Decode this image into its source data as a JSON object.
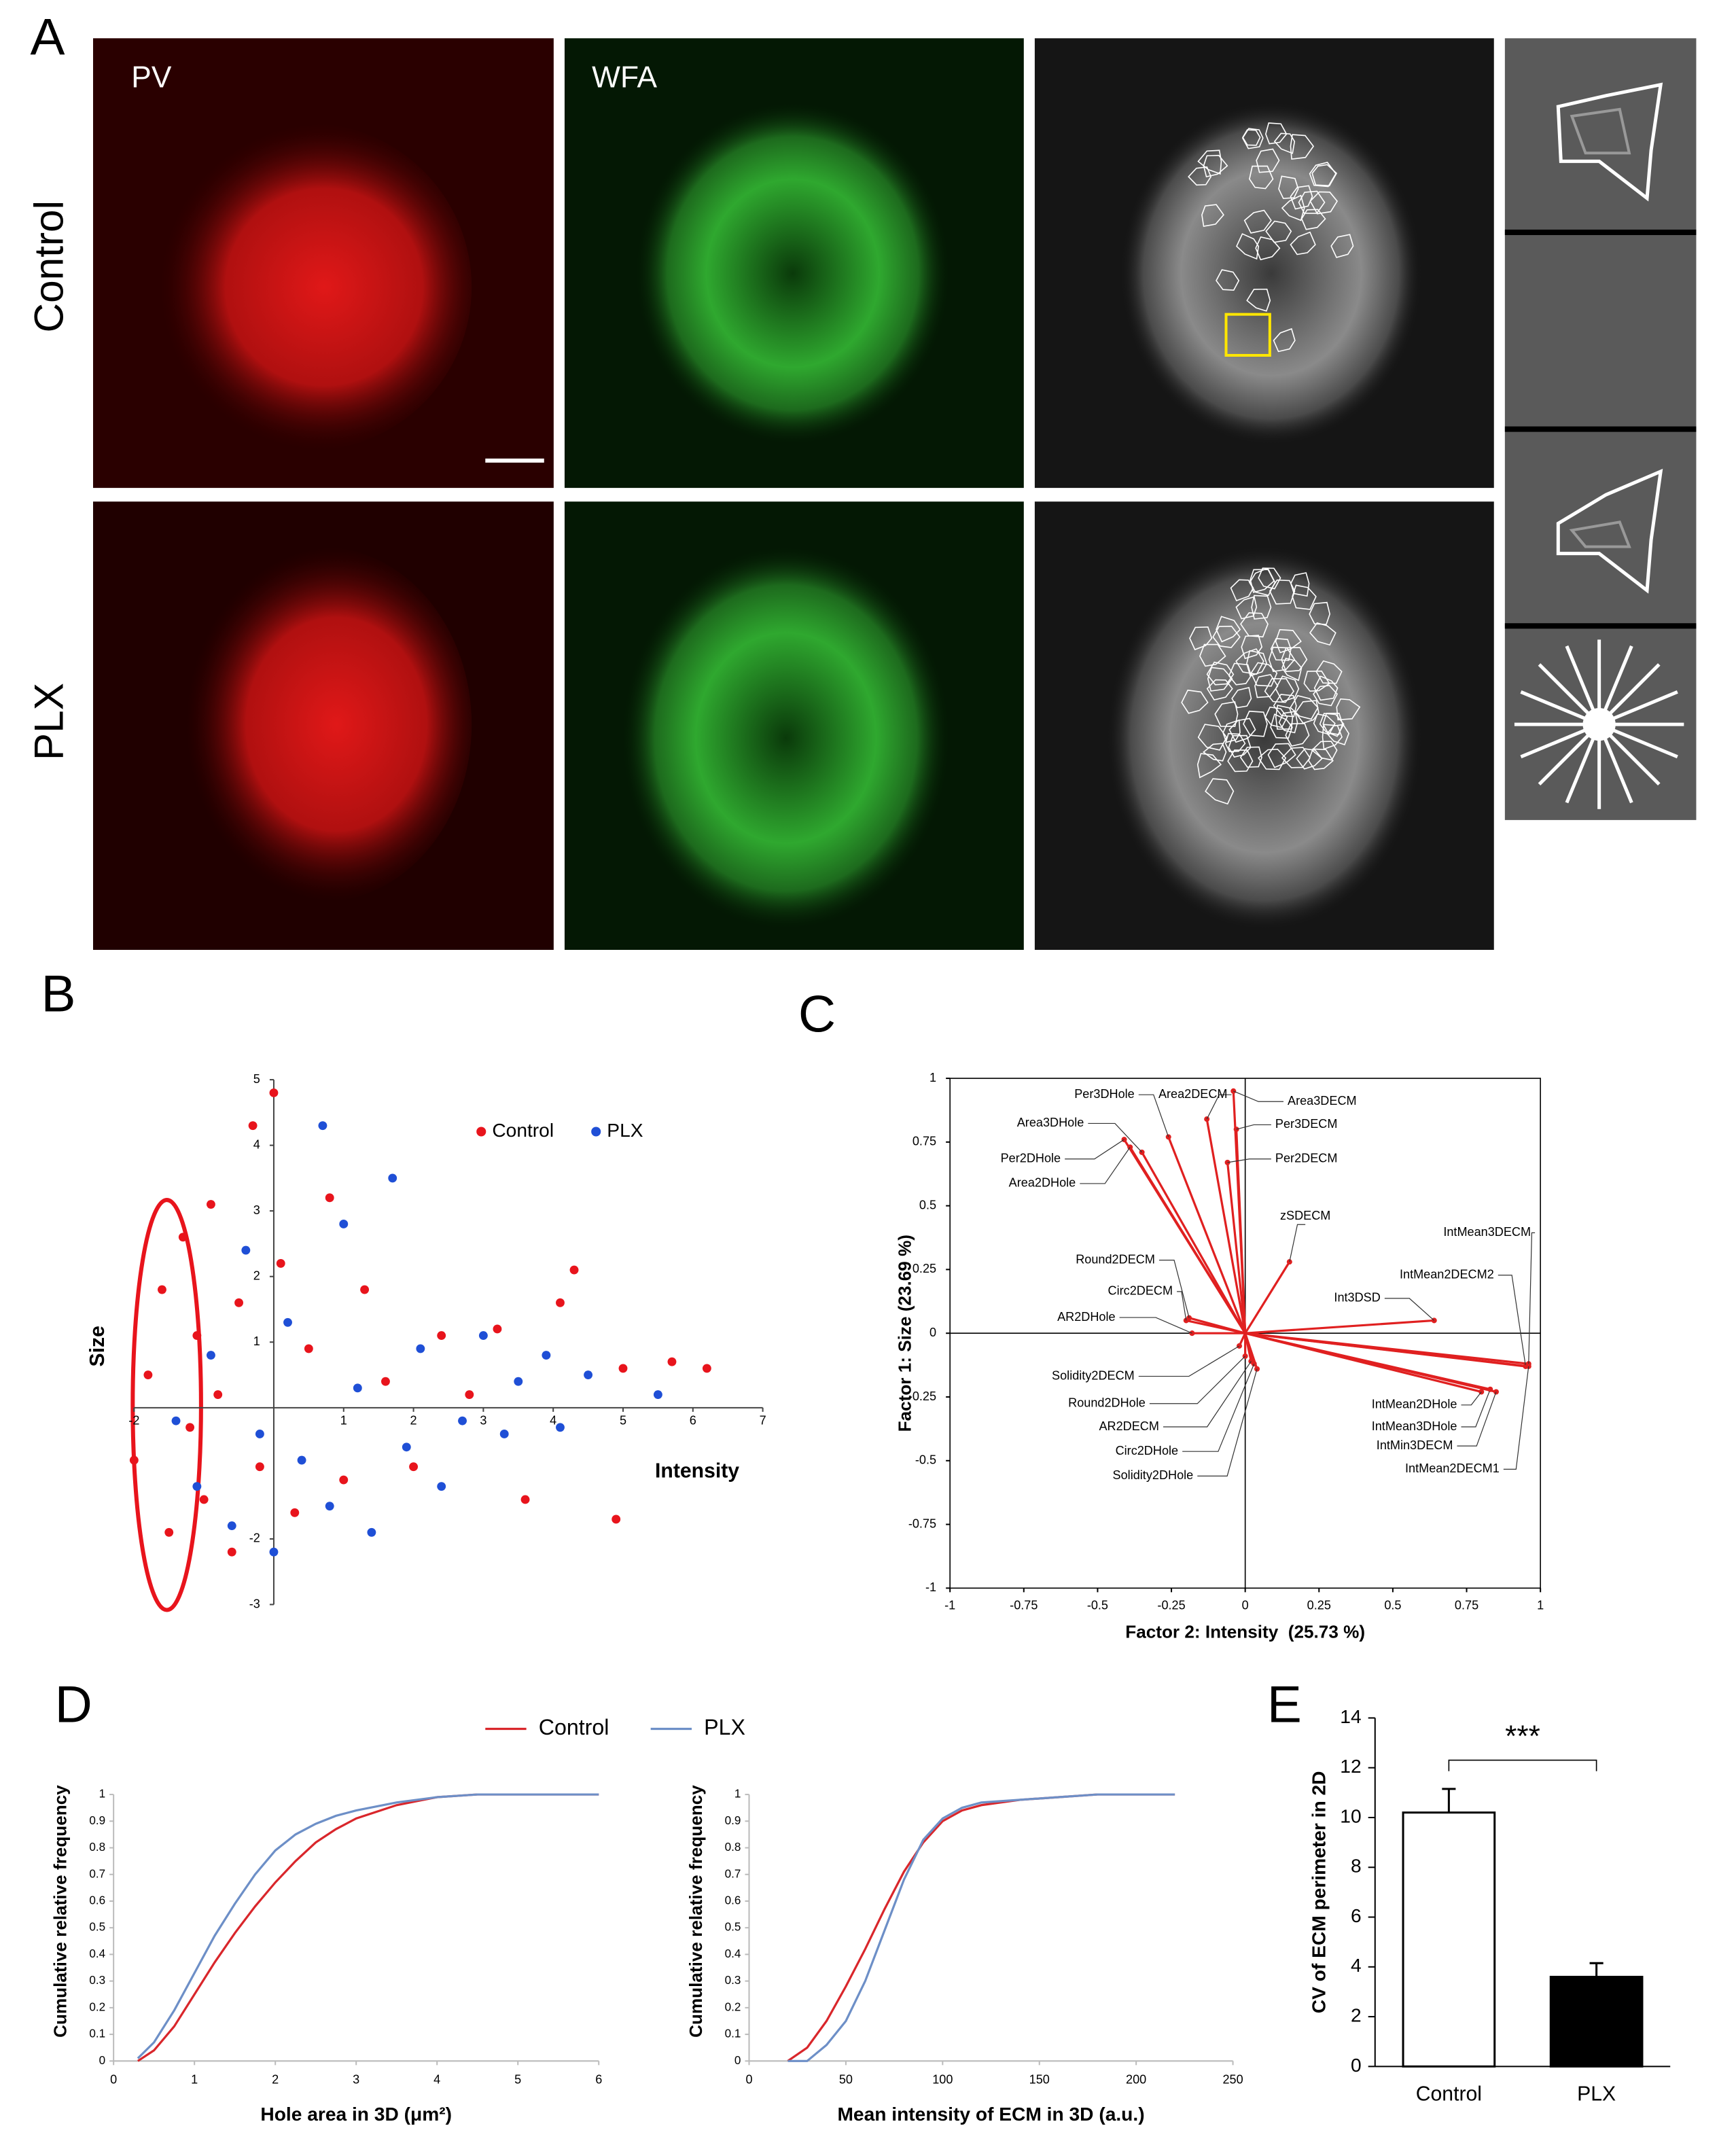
{
  "panel_a": {
    "label": "A",
    "columns": [
      "PV",
      "WFA"
    ],
    "rows": [
      "Control",
      "PLX"
    ]
  },
  "chart_data": [
    {
      "type": "scatter",
      "panel": "B",
      "x_label": "Intensity",
      "y_label": "Size",
      "xlim": [
        -2,
        7
      ],
      "ylim": [
        -3,
        5
      ],
      "xticks": [
        -2,
        1,
        2,
        3,
        4,
        5,
        6,
        7
      ],
      "yticks": [
        -3,
        -2,
        1,
        2,
        3,
        4,
        5
      ],
      "legend": "top-right",
      "series": [
        {
          "name": "Control",
          "color": "#e8141c",
          "x": [
            -2,
            -1.8,
            -1.6,
            -1.5,
            -1.3,
            -1.2,
            -1.1,
            -1,
            -0.9,
            -0.8,
            -0.6,
            -0.5,
            -0.3,
            -0.2,
            0,
            0.1,
            0.3,
            0.5,
            0.8,
            1,
            1.3,
            1.6,
            2,
            2.4,
            2.8,
            3.2,
            3.6,
            4.1,
            4.3,
            4.9,
            5,
            5.7,
            6.2
          ],
          "y": [
            -0.8,
            0.5,
            1.8,
            -1.9,
            2.6,
            -0.3,
            1.1,
            -1.4,
            3.1,
            0.2,
            -2.2,
            1.6,
            4.3,
            -0.9,
            4.8,
            2.2,
            -1.6,
            0.9,
            3.2,
            -1.1,
            1.8,
            0.4,
            -0.9,
            1.1,
            0.2,
            1.2,
            -1.4,
            1.6,
            2.1,
            -1.7,
            0.6,
            0.7,
            0.6
          ]
        },
        {
          "name": "PLX",
          "color": "#1f4fd6",
          "x": [
            -1.4,
            -1.1,
            -0.9,
            -0.6,
            -0.4,
            -0.2,
            0,
            0.2,
            0.4,
            0.7,
            0.8,
            1,
            1.2,
            1.4,
            1.7,
            1.9,
            2.1,
            2.4,
            2.7,
            3,
            3.3,
            3.5,
            3.9,
            4.1,
            4.5,
            5.5
          ],
          "y": [
            -0.2,
            -1.2,
            0.8,
            -1.8,
            2.4,
            -0.4,
            -2.2,
            1.3,
            -0.8,
            4.3,
            -1.5,
            2.8,
            0.3,
            -1.9,
            3.5,
            -0.6,
            0.9,
            -1.2,
            -0.2,
            1.1,
            -0.4,
            0.4,
            0.8,
            -0.3,
            0.5,
            0.2
          ]
        }
      ]
    },
    {
      "type": "biplot",
      "panel": "C",
      "x_label": "Factor 2: Intensity  (25.73 %)",
      "y_label": "Factor 1: Size (23.69 %)",
      "xlim": [
        -1,
        1
      ],
      "ylim": [
        -1,
        1
      ],
      "xticks": [
        -1,
        -0.75,
        -0.5,
        -0.25,
        0,
        0.25,
        0.5,
        0.75,
        1
      ],
      "yticks": [
        -1,
        -0.75,
        -0.5,
        -0.25,
        0,
        0.25,
        0.5,
        0.75,
        1
      ],
      "color": "#e02020",
      "vectors": [
        {
          "label": "Per3DHole",
          "x": -0.26,
          "y": 0.77
        },
        {
          "label": "Area2DECM",
          "x": -0.13,
          "y": 0.84
        },
        {
          "label": "Area3DECM",
          "x": -0.04,
          "y": 0.95
        },
        {
          "label": "Area3DHole",
          "x": -0.35,
          "y": 0.71
        },
        {
          "label": "Per3DECM",
          "x": -0.03,
          "y": 0.8
        },
        {
          "label": "Per2DHole",
          "x": -0.41,
          "y": 0.76
        },
        {
          "label": "Per2DECM",
          "x": -0.06,
          "y": 0.67
        },
        {
          "label": "Area2DHole",
          "x": -0.39,
          "y": 0.73
        },
        {
          "label": "zSDECM",
          "x": 0.15,
          "y": 0.28
        },
        {
          "label": "IntMean3DECM",
          "x": 0.96,
          "y": -0.12
        },
        {
          "label": "IntMean2DECM2",
          "x": 0.95,
          "y": -0.13
        },
        {
          "label": "Int3DSD",
          "x": 0.64,
          "y": 0.05
        },
        {
          "label": "Round2DECM",
          "x": -0.19,
          "y": 0.06
        },
        {
          "label": "Circ2DECM",
          "x": -0.2,
          "y": 0.05
        },
        {
          "label": "AR2DHole",
          "x": -0.18,
          "y": 0
        },
        {
          "label": "Solidity2DECM",
          "x": -0.02,
          "y": -0.05
        },
        {
          "label": "Round2DHole",
          "x": 0,
          "y": -0.09
        },
        {
          "label": "AR2DECM",
          "x": 0.02,
          "y": -0.11
        },
        {
          "label": "Circ2DHole",
          "x": 0.03,
          "y": -0.12
        },
        {
          "label": "Solidity2DHole",
          "x": 0.04,
          "y": -0.14
        },
        {
          "label": "IntMean2DHole",
          "x": 0.8,
          "y": -0.23
        },
        {
          "label": "IntMean3DHole",
          "x": 0.83,
          "y": -0.22
        },
        {
          "label": "IntMin3DECM",
          "x": 0.85,
          "y": -0.23
        },
        {
          "label": "IntMean2DECM1",
          "x": 0.96,
          "y": -0.13
        }
      ]
    },
    {
      "type": "line",
      "panel": "D",
      "x_label": "Hole area in 3D (μm²)",
      "y_label": "Cumulative relative frequency",
      "xlim": [
        0,
        6
      ],
      "ylim": [
        0,
        1
      ],
      "xticks": [
        0,
        1,
        2,
        3,
        4,
        5,
        6
      ],
      "yticks": [
        0,
        0.1,
        0.2,
        0.3,
        0.4,
        0.5,
        0.6,
        0.7,
        0.8,
        0.9,
        1
      ],
      "legend": "top",
      "x": [
        0.3,
        0.5,
        0.75,
        1,
        1.25,
        1.5,
        1.75,
        2,
        2.25,
        2.5,
        2.75,
        3,
        3.5,
        4,
        4.5,
        5,
        6
      ],
      "series": [
        {
          "name": "Control",
          "color": "#d9262b",
          "values": [
            0,
            0.04,
            0.13,
            0.25,
            0.37,
            0.48,
            0.58,
            0.67,
            0.75,
            0.82,
            0.87,
            0.91,
            0.96,
            0.99,
            1,
            1,
            1
          ]
        },
        {
          "name": "PLX",
          "color": "#6d8fc7",
          "values": [
            0.01,
            0.07,
            0.19,
            0.33,
            0.47,
            0.59,
            0.7,
            0.79,
            0.85,
            0.89,
            0.92,
            0.94,
            0.97,
            0.99,
            1,
            1,
            1
          ]
        }
      ]
    },
    {
      "type": "line",
      "x_label": "Mean intensity of ECM in 3D (a.u.)",
      "y_label": "Cumulative relative frequency",
      "xlim": [
        0,
        250
      ],
      "ylim": [
        0,
        1
      ],
      "xticks": [
        0,
        50,
        100,
        150,
        200,
        250
      ],
      "yticks": [
        0,
        0.1,
        0.2,
        0.3,
        0.4,
        0.5,
        0.6,
        0.7,
        0.8,
        0.9,
        1
      ],
      "x": [
        20,
        30,
        40,
        50,
        60,
        70,
        80,
        90,
        100,
        110,
        120,
        140,
        160,
        180,
        200,
        220
      ],
      "series": [
        {
          "color": "#d9262b",
          "values": [
            0,
            0.05,
            0.15,
            0.28,
            0.42,
            0.57,
            0.71,
            0.82,
            0.9,
            0.94,
            0.96,
            0.98,
            0.99,
            1,
            1,
            1
          ]
        },
        {
          "color": "#6d8fc7",
          "values": [
            0,
            0,
            0.06,
            0.15,
            0.3,
            0.49,
            0.68,
            0.83,
            0.91,
            0.95,
            0.97,
            0.98,
            0.99,
            1,
            1,
            1
          ]
        }
      ]
    },
    {
      "type": "bar",
      "panel": "E",
      "y_label": "CV of ECM perimeter in 2D",
      "categories": [
        "Control",
        "PLX"
      ],
      "values": [
        10.2,
        3.6
      ],
      "errors": [
        0.95,
        0.55
      ],
      "colors": [
        "#ffffff",
        "#000000"
      ],
      "ylim": [
        0,
        14
      ],
      "yticks": [
        0,
        2,
        4,
        6,
        8,
        10,
        12,
        14
      ],
      "annotation": "***"
    }
  ]
}
